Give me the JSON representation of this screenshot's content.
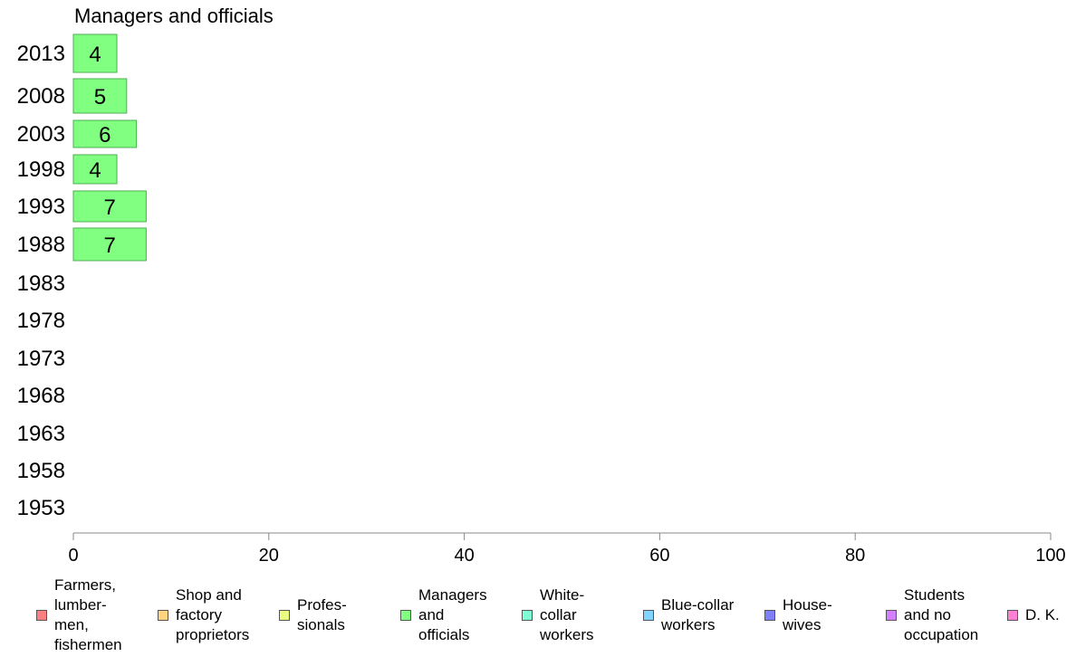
{
  "chart_data": {
    "type": "bar",
    "title": "Managers and officials",
    "orientation": "horizontal",
    "categories": [
      "2013",
      "2008",
      "2003",
      "1998",
      "1993",
      "1988",
      "1983",
      "1978",
      "1973",
      "1968",
      "1963",
      "1958",
      "1953"
    ],
    "values": [
      4,
      5,
      6,
      4,
      7,
      7,
      null,
      null,
      null,
      null,
      null,
      null,
      null
    ],
    "value_labels": [
      "4",
      "5",
      "6",
      "4",
      "7",
      "7",
      "",
      "",
      "",
      "",
      "",
      "",
      ""
    ],
    "xlim": [
      0,
      100
    ],
    "xticks": [
      "0",
      "20",
      "40",
      "60",
      "80",
      "100"
    ],
    "bar_color": "#80ff80",
    "bar_border": "#4caf50",
    "grid": false,
    "legend_position": "bottom",
    "legend": [
      {
        "label": "Farmers,\nlumber-\nmen,\nfishermen",
        "color": "#ff8080"
      },
      {
        "label": "Shop and\nfactory\nproprietors",
        "color": "#ffd480"
      },
      {
        "label": "Profes-\nsionals",
        "color": "#eaff80"
      },
      {
        "label": "Managers\nand\nofficials",
        "color": "#80ff80"
      },
      {
        "label": "White-\ncollar\nworkers",
        "color": "#80ffd4"
      },
      {
        "label": "Blue-collar\nworkers",
        "color": "#80d4ff"
      },
      {
        "label": "House-\nwives",
        "color": "#8080ff"
      },
      {
        "label": "Students\nand no\noccupation",
        "color": "#d480ff"
      },
      {
        "label": "D. K.",
        "color": "#ff80d4"
      }
    ]
  }
}
